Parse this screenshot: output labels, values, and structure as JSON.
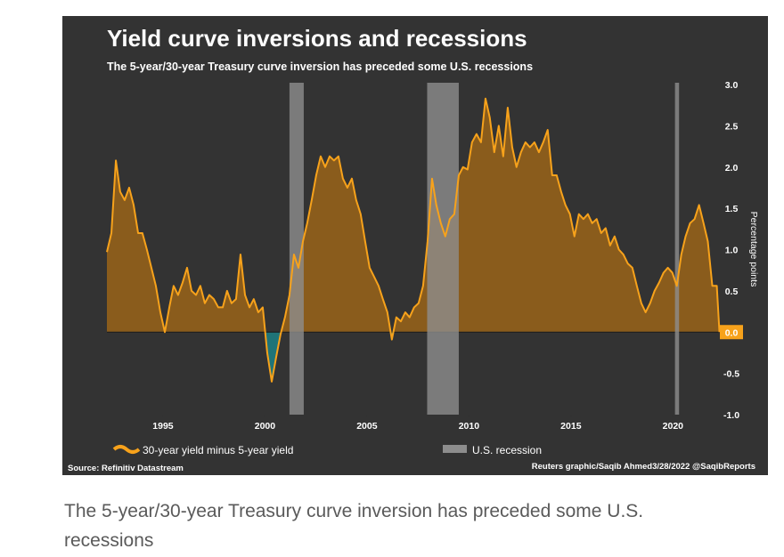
{
  "chart_data": {
    "type": "area",
    "title": "Yield curve inversions and recessions",
    "subtitle": "The 5-year/30-year Treasury curve inversion has preceded some U.S. recessions",
    "y_label": "Percentage points",
    "source": "Source: Refinitiv Datastream",
    "credit": "Reuters graphic/Saqib Ahmed3/28/2022 @SaqibReports",
    "xlim": [
      1992.25,
      2022.3
    ],
    "xticks": [
      1995,
      2000,
      2005,
      2010,
      2015,
      2020
    ],
    "ylim": [
      -1,
      3
    ],
    "yticks": [
      {
        "value": -1,
        "label": "-1.0"
      },
      {
        "value": -0.5,
        "label": "-0.5"
      },
      {
        "value": 0,
        "label": "0.0"
      },
      {
        "value": 0.5,
        "label": "0.5"
      },
      {
        "value": 1,
        "label": "1.0"
      },
      {
        "value": 1.5,
        "label": "1.5"
      },
      {
        "value": 2,
        "label": "2.0"
      },
      {
        "value": 2.5,
        "label": "2.5"
      },
      {
        "value": 3,
        "label": "3.0"
      }
    ],
    "grid": false,
    "series": [
      {
        "name": "30-year yield minus 5-year yield",
        "color": "#f7a21b",
        "fill": "#8a5c1c",
        "negative_fill": "#1f7478",
        "x": [
          1992.25,
          1992.47,
          1992.69,
          1992.9,
          1993.12,
          1993.34,
          1993.56,
          1993.78,
          1993.99,
          1994.21,
          1994.43,
          1994.65,
          1994.87,
          1995.09,
          1995.31,
          1995.52,
          1995.74,
          1995.96,
          1996.18,
          1996.4,
          1996.62,
          1996.83,
          1997.05,
          1997.27,
          1997.49,
          1997.71,
          1997.93,
          1998.14,
          1998.36,
          1998.58,
          1998.8,
          1999.02,
          1999.24,
          1999.45,
          1999.67,
          1999.89,
          2000.11,
          2000.33,
          2000.55,
          2000.76,
          2000.98,
          2001.2,
          2001.42,
          2001.64,
          2001.86,
          2002.07,
          2002.29,
          2002.51,
          2002.73,
          2002.95,
          2003.17,
          2003.38,
          2003.6,
          2003.82,
          2004.04,
          2004.26,
          2004.47,
          2004.69,
          2004.91,
          2005.13,
          2005.35,
          2005.57,
          2005.78,
          2006.0,
          2006.22,
          2006.44,
          2006.66,
          2006.88,
          2007.09,
          2007.31,
          2007.53,
          2007.75,
          2007.97,
          2008.19,
          2008.4,
          2008.62,
          2008.84,
          2009.06,
          2009.28,
          2009.5,
          2009.71,
          2009.93,
          2010.15,
          2010.37,
          2010.59,
          2010.81,
          2011.02,
          2011.24,
          2011.46,
          2011.68,
          2011.9,
          2012.12,
          2012.33,
          2012.55,
          2012.77,
          2012.99,
          2013.21,
          2013.43,
          2013.64,
          2013.86,
          2014.08,
          2014.3,
          2014.52,
          2014.73,
          2014.95,
          2015.17,
          2015.39,
          2015.61,
          2015.83,
          2016.04,
          2016.26,
          2016.48,
          2016.7,
          2016.92,
          2017.14,
          2017.35,
          2017.57,
          2017.79,
          2018.01,
          2018.23,
          2018.45,
          2018.66,
          2018.88,
          2019.1,
          2019.32,
          2019.54,
          2019.75,
          2019.97,
          2020.19,
          2020.41,
          2020.62,
          2020.84,
          2021.06,
          2021.28,
          2021.5,
          2021.71,
          2021.93,
          2022.15,
          2022.28
        ],
        "values": [
          0.97,
          1.2,
          2.08,
          1.7,
          1.6,
          1.75,
          1.54,
          1.2,
          1.2,
          1.0,
          0.78,
          0.56,
          0.24,
          0.0,
          0.3,
          0.56,
          0.45,
          0.6,
          0.78,
          0.5,
          0.45,
          0.56,
          0.35,
          0.45,
          0.4,
          0.3,
          0.3,
          0.5,
          0.35,
          0.4,
          0.94,
          0.45,
          0.3,
          0.4,
          0.24,
          0.3,
          -0.25,
          -0.6,
          -0.3,
          -0.03,
          0.18,
          0.45,
          0.94,
          0.78,
          1.1,
          1.32,
          1.6,
          1.9,
          2.13,
          2.0,
          2.13,
          2.08,
          2.13,
          1.86,
          1.75,
          1.86,
          1.6,
          1.43,
          1.1,
          0.78,
          0.67,
          0.56,
          0.4,
          0.24,
          -0.09,
          0.18,
          0.13,
          0.24,
          0.18,
          0.3,
          0.35,
          0.56,
          1.1,
          1.86,
          1.54,
          1.32,
          1.16,
          1.37,
          1.43,
          1.9,
          2.0,
          1.97,
          2.3,
          2.4,
          2.3,
          2.83,
          2.6,
          2.18,
          2.5,
          2.13,
          2.72,
          2.24,
          2.0,
          2.18,
          2.3,
          2.24,
          2.3,
          2.18,
          2.3,
          2.45,
          1.9,
          1.9,
          1.7,
          1.54,
          1.43,
          1.16,
          1.43,
          1.37,
          1.43,
          1.32,
          1.37,
          1.2,
          1.26,
          1.05,
          1.16,
          1.0,
          0.94,
          0.83,
          0.78,
          0.56,
          0.35,
          0.24,
          0.35,
          0.5,
          0.6,
          0.72,
          0.78,
          0.72,
          0.56,
          0.94,
          1.16,
          1.32,
          1.37,
          1.54,
          1.32,
          1.1,
          0.56,
          0.56,
          0.0
        ]
      }
    ],
    "recessions": {
      "name": "U.S. recession",
      "color": "#8d8d8d",
      "periods": [
        [
          2001.2,
          2001.9
        ],
        [
          2007.95,
          2009.5
        ],
        [
          2020.1,
          2020.3
        ]
      ]
    }
  },
  "caption": "The 5-year/30-year Treasury curve inversion has preceded some U.S. recessions"
}
